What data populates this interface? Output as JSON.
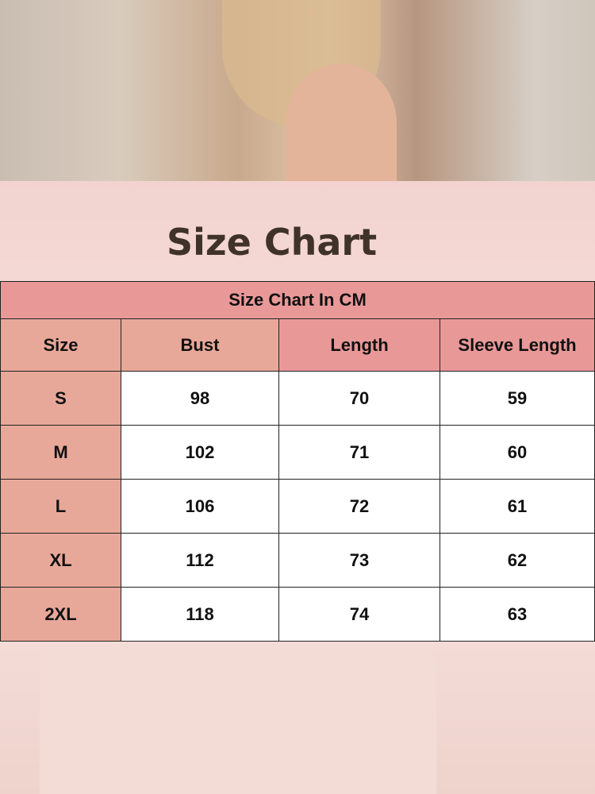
{
  "title": "Size Chart",
  "table": {
    "caption": "Size Chart In CM",
    "headers": [
      "Size",
      "Bust",
      "Length",
      "Sleeve Length"
    ],
    "rows": [
      [
        "S",
        "98",
        "70",
        "59"
      ],
      [
        "M",
        "102",
        "71",
        "60"
      ],
      [
        "L",
        "106",
        "72",
        "61"
      ],
      [
        "XL",
        "112",
        "73",
        "62"
      ],
      [
        "2XL",
        "118",
        "74",
        "63"
      ]
    ]
  },
  "colors": {
    "caption": "#e99898",
    "size_column": "#e8a899",
    "text": "#3f3229"
  }
}
